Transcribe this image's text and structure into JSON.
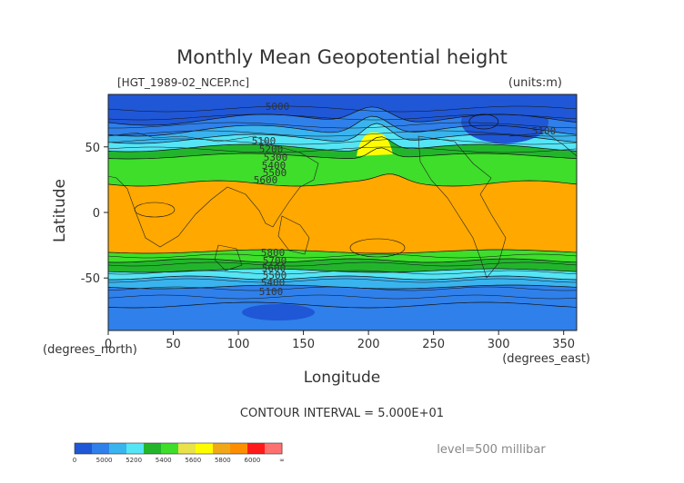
{
  "chart_data": {
    "type": "heatmap",
    "title": "Monthly Mean Geopotential height",
    "file_label": "[HGT_1989-02_NCEP.nc]",
    "units_label": "(units:m)",
    "xlabel": "Longitude",
    "ylabel": "Latitude",
    "x_unit_label": "(degrees_east)",
    "y_unit_label": "(degrees_north)",
    "xlim": [
      0,
      360
    ],
    "ylim": [
      -90,
      90
    ],
    "xticks": [
      "0",
      "50",
      "100",
      "150",
      "200",
      "250",
      "300",
      "350"
    ],
    "yticks": [
      "50",
      "0",
      "-50"
    ],
    "contour_interval": "CONTOUR INTERVAL = 5.000E+01",
    "level": "level=500 millibar",
    "contour_labels": [
      "5000",
      "5100",
      "5200",
      "5300",
      "5400",
      "5500",
      "5600",
      "5700",
      "5800"
    ],
    "colorbar": {
      "ticks": [
        "0",
        "5000",
        "5200",
        "5400",
        "5600",
        "5800",
        "6000",
        "∞"
      ],
      "colors": [
        "#1f57d6",
        "#2f80ea",
        "#39b4ee",
        "#55e5f5",
        "#22b52c",
        "#3ede2a",
        "#e9e24a",
        "#fdfd00",
        "#f0a818",
        "#fd8e00",
        "#ff1a1a",
        "#ff7070"
      ]
    },
    "field_colors": {
      "band_4900": "#1f57d6",
      "band_5000": "#2f80ea",
      "band_5200": "#39b4ee",
      "band_5400": "#55e5f5",
      "band_5500": "#22b52c",
      "band_5600": "#3ede2a",
      "band_5700": "#fdfd00",
      "band_5800": "#ffa800"
    }
  }
}
